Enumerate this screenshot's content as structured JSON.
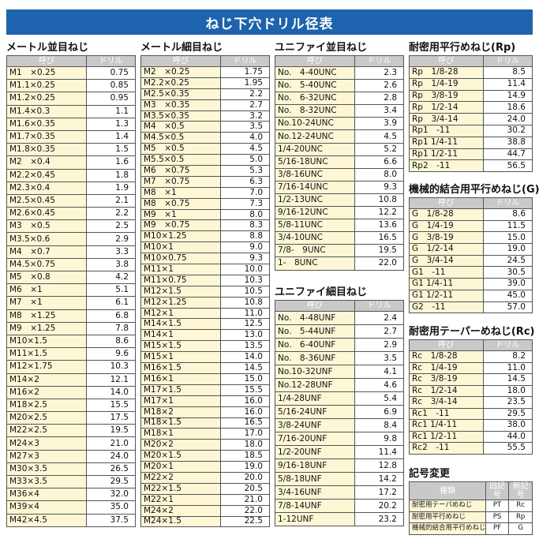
{
  "header": {
    "title": "ねじ下穴ドリル径表"
  },
  "sections": [
    {
      "title": "メートル並目ねじ",
      "columns": [
        "呼び",
        "ドリル"
      ],
      "rows": [
        [
          "M1　×0.25",
          "0.75"
        ],
        [
          "M1.1×0.25",
          "0.85"
        ],
        [
          "M1.2×0.25",
          "0.95"
        ],
        [
          "M1.4×0.3",
          "1.1"
        ],
        [
          "M1.6×0.35",
          "1.3"
        ],
        [
          "M1.7×0.35",
          "1.4"
        ],
        [
          "M1.8×0.35",
          "1.5"
        ],
        [
          "M2　×0.4",
          "1.6"
        ],
        [
          "M2.2×0.45",
          "1.8"
        ],
        [
          "M2.3×0.4",
          "1.9"
        ],
        [
          "M2.5×0.45",
          "2.1"
        ],
        [
          "M2.6×0.45",
          "2.2"
        ],
        [
          "M3　×0.5",
          "2.5"
        ],
        [
          "M3.5×0.6",
          "2.9"
        ],
        [
          "M4　×0.7",
          "3.3"
        ],
        [
          "M4.5×0.75",
          "3.8"
        ],
        [
          "M5　×0.8",
          "4.2"
        ],
        [
          "M6　×1",
          "5.1"
        ],
        [
          "M7　×1",
          "6.1"
        ],
        [
          "M8　×1.25",
          "6.8"
        ],
        [
          "M9　×1.25",
          "7.8"
        ],
        [
          "M10×1.5",
          "8.6"
        ],
        [
          "M11×1.5",
          "9.6"
        ],
        [
          "M12×1.75",
          "10.3"
        ],
        [
          "M14×2",
          "12.1"
        ],
        [
          "M16×2",
          "14.0"
        ],
        [
          "M18×2.5",
          "15.5"
        ],
        [
          "M20×2.5",
          "17.5"
        ],
        [
          "M22×2.5",
          "19.5"
        ],
        [
          "M24×3",
          "21.0"
        ],
        [
          "M27×3",
          "24.0"
        ],
        [
          "M30×3.5",
          "26.5"
        ],
        [
          "M33×3.5",
          "29.5"
        ],
        [
          "M36×4",
          "32.0"
        ],
        [
          "M39×4",
          "35.0"
        ],
        [
          "M42×4.5",
          "37.5"
        ]
      ]
    },
    {
      "title": "メートル細目ねじ",
      "columns": [
        "呼び",
        "ドリル"
      ],
      "rows": [
        [
          "M2　×0.25",
          "1.75"
        ],
        [
          "M2.2×0.25",
          "1.95"
        ],
        [
          "M2.5×0.35",
          "2.2"
        ],
        [
          "M3　×0.35",
          "2.7"
        ],
        [
          "M3.5×0.35",
          "3.2"
        ],
        [
          "M4　×0.5",
          "3.5"
        ],
        [
          "M4.5×0.5",
          "4.0"
        ],
        [
          "M5　×0.5",
          "4.5"
        ],
        [
          "M5.5×0.5",
          "5.0"
        ],
        [
          "M6　×0.75",
          "5.3"
        ],
        [
          "M7　×0.75",
          "6.3"
        ],
        [
          "M8　×1",
          "7.0"
        ],
        [
          "M8　×0.75",
          "7.3"
        ],
        [
          "M9　×1",
          "8.0"
        ],
        [
          "M9　×0.75",
          "8.3"
        ],
        [
          "M10×1.25",
          "8.8"
        ],
        [
          "M10×1",
          "9.0"
        ],
        [
          "M10×0.75",
          "9.3"
        ],
        [
          "M11×1",
          "10.0"
        ],
        [
          "M11×0.75",
          "10.3"
        ],
        [
          "M12×1.5",
          "10.5"
        ],
        [
          "M12×1.25",
          "10.8"
        ],
        [
          "M12×1",
          "11.0"
        ],
        [
          "M14×1.5",
          "12.5"
        ],
        [
          "M14×1",
          "13.0"
        ],
        [
          "M15×1.5",
          "13.5"
        ],
        [
          "M15×1",
          "14.0"
        ],
        [
          "M16×1.5",
          "14.5"
        ],
        [
          "M16×1",
          "15.0"
        ],
        [
          "M17×1.5",
          "15.5"
        ],
        [
          "M17×1",
          "16.0"
        ],
        [
          "M18×2",
          "16.0"
        ],
        [
          "M18×1.5",
          "16.5"
        ],
        [
          "M18×1",
          "17.0"
        ],
        [
          "M20×2",
          "18.0"
        ],
        [
          "M20×1.5",
          "18.5"
        ],
        [
          "M20×1",
          "19.0"
        ],
        [
          "M22×2",
          "20.0"
        ],
        [
          "M22×1.5",
          "20.5"
        ],
        [
          "M22×1",
          "21.0"
        ],
        [
          "M24×2",
          "22.0"
        ],
        [
          "M24×1.5",
          "22.5"
        ]
      ]
    },
    {
      "title": "ユニファイ並目ねじ",
      "columns": [
        "呼び",
        "ドリル"
      ],
      "rows": [
        [
          "No.　4-40UNC",
          "2.3"
        ],
        [
          "No.　5-40UNC",
          "2.6"
        ],
        [
          "No.　6-32UNC",
          "2.8"
        ],
        [
          "No.　8-32UNC",
          "3.4"
        ],
        [
          "No.10-24UNC",
          "3.9"
        ],
        [
          "No.12-24UNC",
          "4.5"
        ],
        [
          "1/4-20UNC",
          "5.2"
        ],
        [
          "5/16-18UNC",
          "6.6"
        ],
        [
          "3/8-16UNC",
          "8.0"
        ],
        [
          "7/16-14UNC",
          "9.3"
        ],
        [
          "1/2-13UNC",
          "10.8"
        ],
        [
          "9/16-12UNC",
          "12.2"
        ],
        [
          "5/8-11UNC",
          "13.6"
        ],
        [
          "3/4-10UNC",
          "16.5"
        ],
        [
          "7/8-　9UNC",
          "19.5"
        ],
        [
          "1-　8UNC",
          "22.0"
        ]
      ]
    },
    {
      "title": "ユニファイ細目ねじ",
      "columns": [
        "呼び",
        "ドリル"
      ],
      "rows": [
        [
          "No.　4-48UNF",
          "2.4"
        ],
        [
          "No.　5-44UNF",
          "2.7"
        ],
        [
          "No.　6-40UNF",
          "2.9"
        ],
        [
          "No.　8-36UNF",
          "3.5"
        ],
        [
          "No.10-32UNF",
          "4.1"
        ],
        [
          "No.12-28UNF",
          "4.6"
        ],
        [
          "1/4-28UNF",
          "5.4"
        ],
        [
          "5/16-24UNF",
          "6.9"
        ],
        [
          "3/8-24UNF",
          "8.4"
        ],
        [
          "7/16-20UNF",
          "9.8"
        ],
        [
          "1/2-20UNF",
          "11.4"
        ],
        [
          "9/16-18UNF",
          "12.8"
        ],
        [
          "5/8-18UNF",
          "14.2"
        ],
        [
          "3/4-16UNF",
          "17.2"
        ],
        [
          "7/8-14UNF",
          "20.2"
        ],
        [
          "1-12UNF",
          "23.2"
        ]
      ]
    },
    {
      "title": "耐密用平行めねじ(Rp)",
      "columns": [
        "呼び",
        "ドリル"
      ],
      "rows": [
        [
          "Rp　1/8-28",
          "8.5"
        ],
        [
          "Rp　1/4-19",
          "11.4"
        ],
        [
          "Rp　3/8-19",
          "14.9"
        ],
        [
          "Rp　1/2-14",
          "18.6"
        ],
        [
          "Rp　3/4-14",
          "24.0"
        ],
        [
          "Rp1　-11",
          "30.2"
        ],
        [
          "Rp1 1/4-11",
          "38.8"
        ],
        [
          "Rp1 1/2-11",
          "44.7"
        ],
        [
          "Rp2　-11",
          "56.5"
        ]
      ]
    },
    {
      "title": "機械的結合用平行めねじ(G)",
      "columns": [
        "呼び",
        "ドリル"
      ],
      "rows": [
        [
          "G　1/8-28",
          "8.6"
        ],
        [
          "G　1/4-19",
          "11.5"
        ],
        [
          "G　3/8-19",
          "15.0"
        ],
        [
          "G　1/2-14",
          "19.0"
        ],
        [
          "G　3/4-14",
          "24.5"
        ],
        [
          "G1　-11",
          "30.5"
        ],
        [
          "G1 1/4-11",
          "39.0"
        ],
        [
          "G1 1/2-11",
          "45.0"
        ],
        [
          "G2　-11",
          "57.0"
        ]
      ]
    },
    {
      "title": "耐密用テーパーめねじ(Rc)",
      "columns": [
        "呼び",
        "ドリル"
      ],
      "rows": [
        [
          "Rc　1/8-28",
          "8.2"
        ],
        [
          "Rc　1/4-19",
          "11.0"
        ],
        [
          "Rc　3/8-19",
          "14.5"
        ],
        [
          "Rc　1/2-14",
          "18.0"
        ],
        [
          "Rc　3/4-14",
          "23.5"
        ],
        [
          "Rc1　-11",
          "29.5"
        ],
        [
          "Rc1 1/4-11",
          "38.0"
        ],
        [
          "Rc1 1/2-11",
          "44.0"
        ],
        [
          "Rc2　-11",
          "55.5"
        ]
      ]
    },
    {
      "title": "記号変更",
      "columns": [
        "種類",
        "旧記号",
        "新記号"
      ],
      "rows": [
        [
          "耐密用テーパめねじ",
          "PT",
          "Rc"
        ],
        [
          "耐密用平行めねじ",
          "PS",
          "Rp"
        ],
        [
          "機械的結合用平行めねじ",
          "PF",
          "G"
        ]
      ]
    }
  ]
}
